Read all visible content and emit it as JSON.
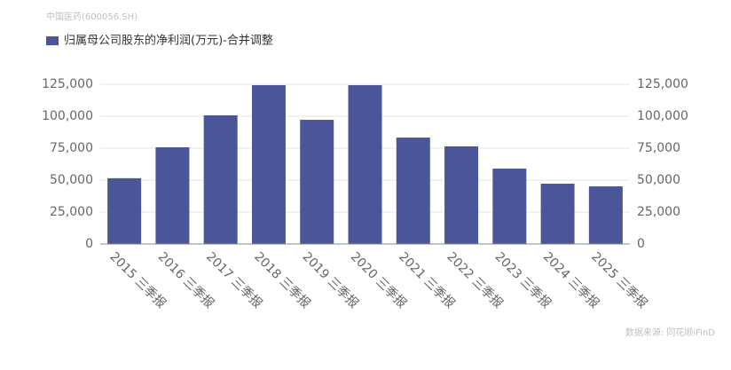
{
  "chart_data": {
    "type": "bar",
    "title": "中国医药(600056.SH)",
    "source": "数据来源: 同花顺iFinD",
    "categories": [
      "2015 三季报",
      "2016 三季报",
      "2017 三季报",
      "2018 三季报",
      "2019 三季报",
      "2020 三季报",
      "2021 三季报",
      "2022 三季报",
      "2023 三季报",
      "2024 三季报",
      "2025 三季报"
    ],
    "series": [
      {
        "name": "归属母公司股东的净利润(万元)-合并调整",
        "color": "#4a5697",
        "values": [
          51500,
          75700,
          100700,
          124300,
          97200,
          124300,
          83300,
          76400,
          59000,
          47200,
          45100
        ]
      }
    ],
    "ylim": [
      0,
      125000
    ],
    "yticks": [
      0,
      {
        "value": 25000,
        "label": "25,000"
      },
      {
        "value": 50000,
        "label": "50,000"
      },
      {
        "value": 75000,
        "label": "75,000"
      },
      {
        "value": 100000,
        "label": "100,000"
      },
      {
        "value": 125000,
        "label": "125,000"
      }
    ],
    "y2lim": [
      0,
      125000
    ],
    "y2ticks": [
      0,
      {
        "value": 25000,
        "label": "25,000"
      },
      {
        "value": 50000,
        "label": "50,000"
      },
      {
        "value": 75000,
        "label": "75,000"
      },
      {
        "value": 100000,
        "label": "100,000"
      },
      {
        "value": 125000,
        "label": "125,000"
      }
    ],
    "grid": true
  }
}
